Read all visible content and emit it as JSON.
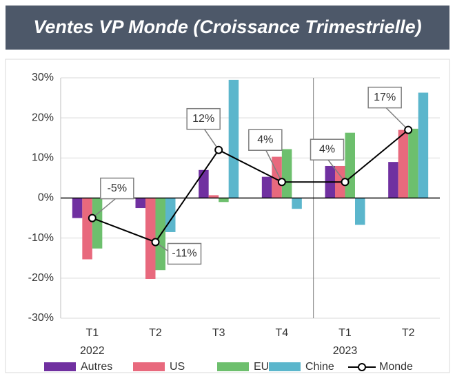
{
  "chart_data": {
    "type": "bar",
    "title": "Ventes VP Monde (Croissance Trimestrielle)",
    "categories": [
      "T1",
      "T2",
      "T3",
      "T4",
      "T1",
      "T2"
    ],
    "x_groups": [
      "2022",
      null,
      null,
      null,
      "2023",
      null
    ],
    "ylim": [
      -30,
      30
    ],
    "yticks": [
      {
        "value": -30,
        "label": "-30%"
      },
      {
        "value": -20,
        "label": "-20%"
      },
      {
        "value": -10,
        "label": "-10%"
      },
      {
        "value": 0,
        "label": "0%"
      },
      {
        "value": 10,
        "label": "10%"
      },
      {
        "value": 20,
        "label": "20%"
      },
      {
        "value": 30,
        "label": "30%"
      }
    ],
    "grid": true,
    "legend": "bottom",
    "series": [
      {
        "name": "Autres",
        "color": "#7030a0",
        "values": [
          -5,
          -2.5,
          7,
          5.3,
          8,
          9
        ]
      },
      {
        "name": "US",
        "color": "#e8697d",
        "values": [
          -15.3,
          -20.2,
          0.7,
          10.3,
          8,
          17
        ]
      },
      {
        "name": "EU",
        "color": "#6dbf6d",
        "values": [
          -12.6,
          -18,
          -1,
          12.2,
          16.3,
          17.3
        ]
      },
      {
        "name": "Chine",
        "color": "#5bb6cc",
        "values": [
          0,
          -8.5,
          29.5,
          -2.7,
          -6.7,
          26.3
        ]
      },
      {
        "name": "Monde",
        "color": "#000000",
        "type": "line",
        "values": [
          -5,
          -11,
          12,
          4,
          4,
          17
        ],
        "value_labels": [
          "-5%",
          "-11%",
          "12%",
          "4%",
          "4%",
          "17%"
        ]
      }
    ]
  }
}
